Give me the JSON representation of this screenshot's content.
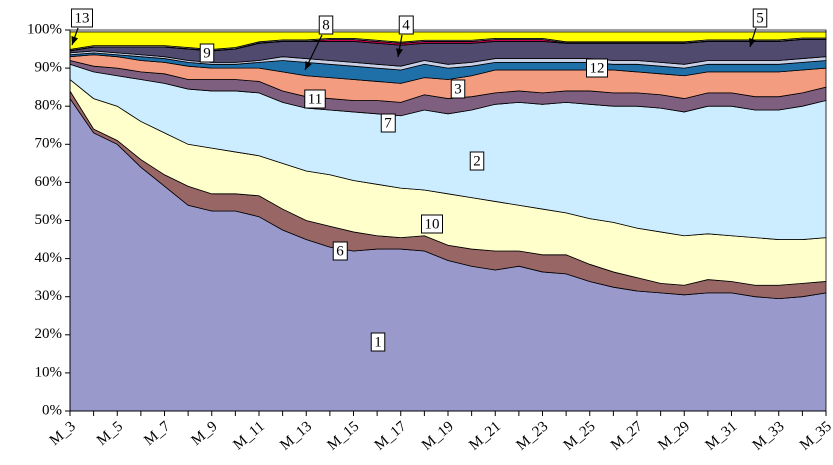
{
  "chart_data": {
    "type": "stacked_area",
    "categories": [
      "M_3",
      null,
      "M_5",
      null,
      "M_7",
      null,
      "M_9",
      null,
      "M_11",
      null,
      "M_13",
      null,
      "M_15",
      null,
      "M_17",
      null,
      "M_19",
      null,
      "M_21",
      null,
      "M_23",
      null,
      "M_25",
      null,
      "M_27",
      null,
      "M_29",
      null,
      "M_31",
      null,
      "M_33",
      null,
      "M_35"
    ],
    "ylim": [
      0,
      100
    ],
    "yticks": [
      {
        "value": 0,
        "label": "0%"
      },
      {
        "value": 10,
        "label": "10%"
      },
      {
        "value": 20,
        "label": "20%"
      },
      {
        "value": 30,
        "label": "30%"
      },
      {
        "value": 40,
        "label": "40%"
      },
      {
        "value": 50,
        "label": "50%"
      },
      {
        "value": 60,
        "label": "60%"
      },
      {
        "value": 70,
        "label": "70%"
      },
      {
        "value": 80,
        "label": "80%"
      },
      {
        "value": 90,
        "label": "90%"
      },
      {
        "value": 100,
        "label": "100%"
      }
    ],
    "series": [
      {
        "name": "1",
        "color": "#9999cc",
        "values": [
          82,
          73,
          70,
          64,
          59,
          54,
          52.5,
          52.5,
          51,
          47.5,
          45,
          43,
          42,
          42.5,
          42.5,
          42,
          39.5,
          38,
          37,
          38,
          36.5,
          36,
          34,
          32.5,
          31.5,
          31,
          30.5,
          31,
          31,
          30,
          29.5,
          30,
          31
        ]
      },
      {
        "name": "6",
        "color": "#996666",
        "values": [
          2,
          1,
          1,
          2,
          3,
          5,
          4.5,
          4.5,
          5.5,
          5.5,
          5,
          5.5,
          5,
          3.5,
          3,
          4,
          4,
          4.5,
          5,
          4,
          4.5,
          5,
          4.5,
          4,
          3.5,
          2.5,
          2.5,
          3.5,
          3,
          3,
          3.5,
          3.5,
          3
        ]
      },
      {
        "name": "10",
        "color": "#ffffcc",
        "values": [
          3,
          8,
          9,
          10,
          11,
          11,
          12,
          11,
          10.5,
          12,
          13,
          13.5,
          13.5,
          13.5,
          13,
          12,
          13.5,
          13.5,
          13,
          12,
          12,
          11,
          12,
          13,
          13,
          13.5,
          13,
          12,
          12,
          12.5,
          12,
          11.5,
          11.5
        ]
      },
      {
        "name": "2",
        "color": "#ccecff",
        "values": [
          4,
          7,
          8,
          11,
          13,
          14.5,
          15,
          16,
          16.5,
          16,
          16.5,
          17,
          18,
          18.5,
          19,
          21,
          21,
          23,
          25.5,
          27,
          27.5,
          29,
          30,
          30.5,
          32,
          32.5,
          32.5,
          33.5,
          34,
          33.5,
          34,
          35,
          36
        ]
      },
      {
        "name": "7",
        "color": "#7f5f7f",
        "values": [
          1,
          1.5,
          2,
          2,
          2.5,
          2.5,
          3,
          3,
          3,
          3,
          3,
          3,
          3,
          3.5,
          3.5,
          4,
          4,
          3.5,
          3,
          3,
          3,
          3,
          3.5,
          3.5,
          3.5,
          3.5,
          3.5,
          3.5,
          3.5,
          3.5,
          3.5,
          3.5,
          3.5
        ]
      },
      {
        "name": "11",
        "color": "#f49c80",
        "values": [
          1,
          3,
          3,
          3,
          3,
          3.5,
          3,
          3,
          3.5,
          5,
          5.5,
          5.5,
          5.5,
          5,
          5,
          4.5,
          5,
          5.5,
          6,
          5.5,
          6,
          5.5,
          5.5,
          6,
          5.5,
          5.5,
          6,
          5.5,
          5.5,
          6.5,
          6.5,
          6,
          5
        ]
      },
      {
        "name": "3",
        "color": "#1f6fa8",
        "values": [
          0.5,
          0.5,
          0.5,
          1,
          1,
          1,
          1,
          1,
          1.5,
          3,
          3.5,
          3.5,
          3.5,
          3.5,
          3.5,
          3.5,
          3,
          2.5,
          2,
          2,
          2,
          2,
          2,
          1.5,
          2,
          2,
          2,
          2,
          2,
          2,
          2,
          2,
          2
        ]
      },
      {
        "name": "8",
        "color": "#c8d0e8",
        "values": [
          0.5,
          0.5,
          0.5,
          0.5,
          0.5,
          0.5,
          0.5,
          0.5,
          0.5,
          1,
          1,
          1,
          1,
          1,
          1,
          1,
          1,
          1,
          1,
          1,
          1,
          1,
          1,
          1,
          1,
          1,
          1,
          1,
          1,
          1,
          1,
          1,
          1
        ]
      },
      {
        "name": "12",
        "color": "#4f4a6e",
        "values": [
          0.5,
          1,
          1.5,
          2,
          2.5,
          3,
          3,
          3.5,
          4.5,
          4,
          4.5,
          5,
          5.5,
          5.5,
          5.5,
          4.5,
          5.5,
          5,
          4.5,
          4.5,
          4.5,
          4,
          4,
          4.5,
          4.5,
          5,
          5.5,
          5,
          5,
          5,
          5,
          5,
          4.5
        ]
      },
      {
        "name": "4",
        "color": "#cc0055",
        "values": [
          0.1,
          0.1,
          0.1,
          0.1,
          0.1,
          0.1,
          0.1,
          0.1,
          0.1,
          0.1,
          0.1,
          0.5,
          0.5,
          0.5,
          0.5,
          0.5,
          0.5,
          0.5,
          0.5,
          0.5,
          0.5,
          0.1,
          0.1,
          0.1,
          0.1,
          0.1,
          0.1,
          0.1,
          0.1,
          0.1,
          0.1,
          0.1,
          0.1
        ]
      },
      {
        "name": "5",
        "color": "#d8d8d8",
        "values": [
          0.3,
          0.3,
          0.3,
          0.3,
          0.3,
          0.3,
          0.3,
          0.3,
          0.3,
          0.3,
          0.3,
          0.3,
          0.3,
          0.3,
          0.3,
          0.3,
          0.3,
          0.3,
          0.3,
          0.3,
          0.3,
          0.3,
          0.3,
          0.3,
          0.3,
          0.3,
          0.3,
          0.3,
          0.3,
          0.3,
          0.3,
          0.3,
          0.3
        ]
      },
      {
        "name": "9",
        "color": "#ffff00",
        "values": [
          4.6,
          3.6,
          3.6,
          3.6,
          3.6,
          4.1,
          4.6,
          4.1,
          2.6,
          2.1,
          2.1,
          1.7,
          1.7,
          2.2,
          2.7,
          2.2,
          2.2,
          2.2,
          1.7,
          1.7,
          1.7,
          2.6,
          2.6,
          2.6,
          2.6,
          2.6,
          2.6,
          2.1,
          2.1,
          2.1,
          2.1,
          1.6,
          1.6
        ]
      },
      {
        "name": "13",
        "color": "#ffffff",
        "values": [
          0.5,
          0.5,
          0.5,
          0.5,
          0.5,
          0.5,
          0.5,
          0.5,
          0.5,
          0.5,
          0.5,
          0.5,
          0.5,
          0.5,
          0.5,
          0.5,
          0.5,
          0.5,
          0.5,
          0.5,
          0.5,
          0.5,
          0.5,
          0.5,
          0.5,
          0.5,
          0.5,
          0.5,
          0.5,
          0.5,
          0.5,
          0.5,
          0.5
        ]
      }
    ]
  }
}
